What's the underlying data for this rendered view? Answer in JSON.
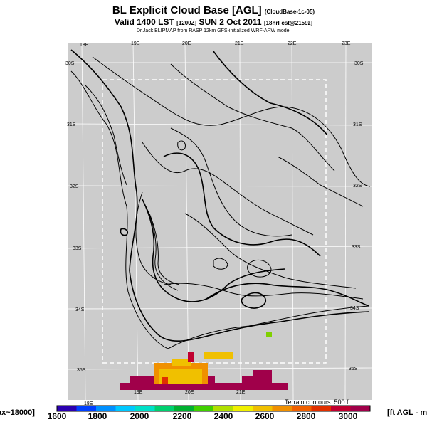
{
  "header": {
    "title": "BL Explicit Cloud Base [AGL]",
    "title_tag": "(CloudBase-1c-05)",
    "valid": "Valid 1400 LST",
    "valid_tag": "[1200Z]",
    "date": "SUN 2 Oct 2011",
    "date_tag": "[18hrFcst@2159z]",
    "subtitle": "Dr.Jack BLIPMAP from RASP 12km GFS-initialized WRF-ARW model"
  },
  "map": {
    "lon_labels": [
      "18E",
      "19E",
      "20E",
      "21E",
      "22E",
      "23E"
    ],
    "lat_labels": [
      "30S",
      "31S",
      "32S",
      "33S",
      "34S",
      "35S"
    ],
    "terrain_note": "Terrain contours: 500 ft",
    "background_color": "#cccccc"
  },
  "colorbar": {
    "left_annotation": "ax~18000]",
    "units": "[ft AGL - m",
    "ticks": [
      "1600",
      "1800",
      "2000",
      "2200",
      "2400",
      "2600",
      "2800",
      "3000"
    ],
    "colors": [
      "#2b00b0",
      "#0040ff",
      "#0090ff",
      "#00c8ff",
      "#00e0c8",
      "#00d070",
      "#00b030",
      "#40d000",
      "#b0e000",
      "#f0f000",
      "#f0c000",
      "#f09000",
      "#f06000",
      "#e03000",
      "#c00030",
      "#a0004a"
    ]
  }
}
